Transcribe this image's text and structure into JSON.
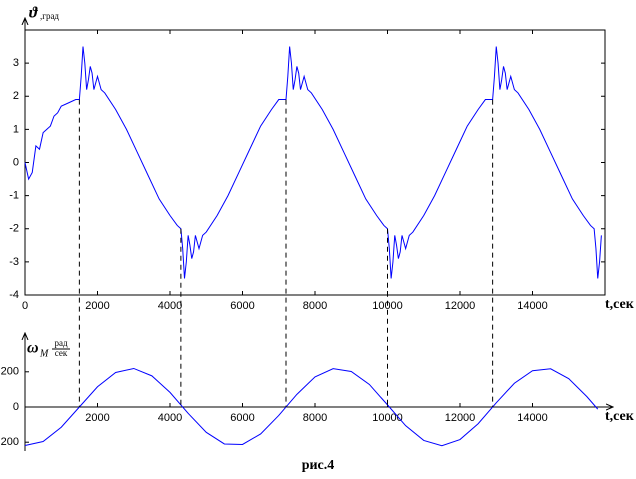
{
  "chart_data": [
    {
      "type": "line",
      "y_label": {
        "symbol": "ϑ",
        "unit": ",град"
      },
      "x_label": "t,сек",
      "x": [
        0,
        100,
        200,
        300,
        400,
        500,
        600,
        700,
        800,
        900,
        1000,
        1200,
        1400,
        1500,
        1550,
        1600,
        1650,
        1700,
        1750,
        1800,
        1850,
        1900,
        1950,
        2000,
        2100,
        2200,
        2500,
        2800,
        3100,
        3400,
        3700,
        4000,
        4200,
        4300,
        4350,
        4400,
        4450,
        4500,
        4550,
        4600,
        4650,
        4700,
        4750,
        4800,
        4900,
        5000,
        5300,
        5600,
        5900,
        6200,
        6500,
        6800,
        7000,
        7200,
        7250,
        7300,
        7350,
        7400,
        7450,
        7500,
        7550,
        7600,
        7650,
        7700,
        7800,
        7900,
        8200,
        8500,
        8800,
        9100,
        9400,
        9700,
        9900,
        10000,
        10050,
        10100,
        10150,
        10200,
        10250,
        10300,
        10350,
        10400,
        10450,
        10500,
        10600,
        10700,
        11000,
        11300,
        11600,
        11900,
        12200,
        12500,
        12700,
        12900,
        12950,
        13000,
        13050,
        13100,
        13150,
        13200,
        13250,
        13300,
        13350,
        13400,
        13500,
        13600,
        13900,
        14200,
        14500,
        14800,
        15100,
        15400,
        15600,
        15700,
        15750,
        15800,
        15850,
        15900
      ],
      "series": [
        {
          "color": "#0000ff",
          "values": [
            0,
            -0.5,
            -0.3,
            0.5,
            0.4,
            0.9,
            1.0,
            1.1,
            1.4,
            1.5,
            1.7,
            1.8,
            1.9,
            1.9,
            2.6,
            3.5,
            3.0,
            2.2,
            2.5,
            2.9,
            2.7,
            2.2,
            2.4,
            2.6,
            2.2,
            2.1,
            1.6,
            1.0,
            0.3,
            -0.4,
            -1.1,
            -1.6,
            -1.9,
            -2.0,
            -2.6,
            -3.5,
            -3.0,
            -2.2,
            -2.5,
            -2.9,
            -2.7,
            -2.2,
            -2.4,
            -2.6,
            -2.2,
            -2.1,
            -1.6,
            -1.0,
            -0.3,
            0.4,
            1.1,
            1.6,
            1.9,
            1.9,
            2.6,
            3.5,
            3.0,
            2.2,
            2.5,
            2.9,
            2.7,
            2.2,
            2.4,
            2.6,
            2.2,
            2.1,
            1.6,
            1.0,
            0.3,
            -0.4,
            -1.1,
            -1.6,
            -1.9,
            -2.0,
            -2.6,
            -3.5,
            -3.0,
            -2.2,
            -2.5,
            -2.9,
            -2.7,
            -2.2,
            -2.4,
            -2.6,
            -2.2,
            -2.1,
            -1.6,
            -1.0,
            -0.3,
            0.4,
            1.1,
            1.6,
            1.9,
            1.9,
            2.6,
            3.5,
            3.0,
            2.2,
            2.5,
            2.9,
            2.7,
            2.2,
            2.4,
            2.6,
            2.2,
            2.1,
            1.6,
            1.0,
            0.3,
            -0.4,
            -1.1,
            -1.6,
            -1.9,
            -2.0,
            -2.6,
            -3.5,
            -3.0,
            -2.2
          ]
        }
      ],
      "xlim": [
        0,
        16000
      ],
      "ylim": [
        -4,
        4
      ],
      "xticks": [
        0,
        2000,
        4000,
        6000,
        8000,
        10000,
        12000,
        14000
      ],
      "yticks": [
        -4,
        -3,
        -2,
        -1,
        0,
        1,
        2,
        3
      ],
      "vlines": [
        1500,
        4300,
        7200,
        10000,
        12900
      ]
    },
    {
      "type": "line",
      "y_label": {
        "symbol": "ω",
        "subscript": "М",
        "numerator": "рад",
        "denominator": "сек"
      },
      "x_label": "t,сек",
      "x": [
        0,
        500,
        1000,
        1500,
        2000,
        2500,
        3000,
        3500,
        4000,
        4500,
        5000,
        5500,
        6000,
        6500,
        7000,
        7500,
        8000,
        8500,
        9000,
        9500,
        10000,
        10500,
        11000,
        11500,
        12000,
        12500,
        13000,
        13500,
        14000,
        14500,
        15000,
        15500,
        15800
      ],
      "series": [
        {
          "color": "#0000ff",
          "values": [
            -219,
            -196,
            -115,
            0,
            115,
            196,
            219,
            177,
            83,
            -36,
            -144,
            -210,
            -213,
            -153,
            -48,
            72,
            171,
            218,
            202,
            128,
            12,
            -106,
            -190,
            -220,
            -185,
            -95,
            24,
            135,
            206,
            217,
            161,
            59,
            -12
          ]
        }
      ],
      "xlim": [
        0,
        16000
      ],
      "ylim": [
        -250,
        250
      ],
      "xticks": [
        2000,
        4000,
        6000,
        8000,
        10000,
        12000,
        14000
      ],
      "yticks": [
        {
          "value": -200,
          "label": "200"
        },
        0,
        200
      ]
    }
  ],
  "caption": "рис.4"
}
